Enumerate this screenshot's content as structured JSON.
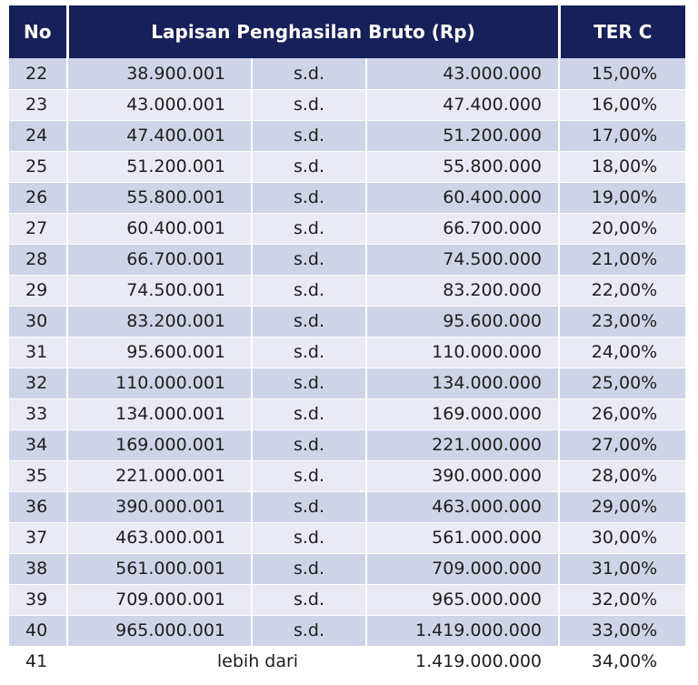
{
  "header": {
    "no": "No",
    "range": "Lapisan Penghasilan Bruto (Rp)",
    "ter": "TER C"
  },
  "separator": "s.d.",
  "rows": [
    {
      "no": "22",
      "from": "38.900.001",
      "to": "43.000.000",
      "ter": "15,00%"
    },
    {
      "no": "23",
      "from": "43.000.001",
      "to": "47.400.000",
      "ter": "16,00%"
    },
    {
      "no": "24",
      "from": "47.400.001",
      "to": "51.200.000",
      "ter": "17,00%"
    },
    {
      "no": "25",
      "from": "51.200.001",
      "to": "55.800.000",
      "ter": "18,00%"
    },
    {
      "no": "26",
      "from": "55.800.001",
      "to": "60.400.000",
      "ter": "19,00%"
    },
    {
      "no": "27",
      "from": "60.400.001",
      "to": "66.700.000",
      "ter": "20,00%"
    },
    {
      "no": "28",
      "from": "66.700.001",
      "to": "74.500.000",
      "ter": "21,00%"
    },
    {
      "no": "29",
      "from": "74.500.001",
      "to": "83.200.000",
      "ter": "22,00%"
    },
    {
      "no": "30",
      "from": "83.200.001",
      "to": "95.600.000",
      "ter": "23,00%"
    },
    {
      "no": "31",
      "from": "95.600.001",
      "to": "110.000.000",
      "ter": "24,00%"
    },
    {
      "no": "32",
      "from": "110.000.001",
      "to": "134.000.000",
      "ter": "25,00%"
    },
    {
      "no": "33",
      "from": "134.000.001",
      "to": "169.000.000",
      "ter": "26,00%"
    },
    {
      "no": "34",
      "from": "169.000.001",
      "to": "221.000.000",
      "ter": "27,00%"
    },
    {
      "no": "35",
      "from": "221.000.001",
      "to": "390.000.000",
      "ter": "28,00%"
    },
    {
      "no": "36",
      "from": "390.000.001",
      "to": "463.000.000",
      "ter": "29,00%"
    },
    {
      "no": "37",
      "from": "463.000.001",
      "to": "561.000.000",
      "ter": "30,00%"
    },
    {
      "no": "38",
      "from": "561.000.001",
      "to": "709.000.000",
      "ter": "31,00%"
    },
    {
      "no": "39",
      "from": "709.000.001",
      "to": "965.000.000",
      "ter": "32,00%"
    },
    {
      "no": "40",
      "from": "965.000.001",
      "to": "1.419.000.000",
      "ter": "33,00%"
    }
  ],
  "last_row": {
    "no": "41",
    "label": "lebih dari",
    "to": "1.419.000.000",
    "ter": "34,00%"
  },
  "colors": {
    "header_bg": "#16215a",
    "row_dark": "#cfd3e8",
    "row_light": "#e9eaf3"
  }
}
